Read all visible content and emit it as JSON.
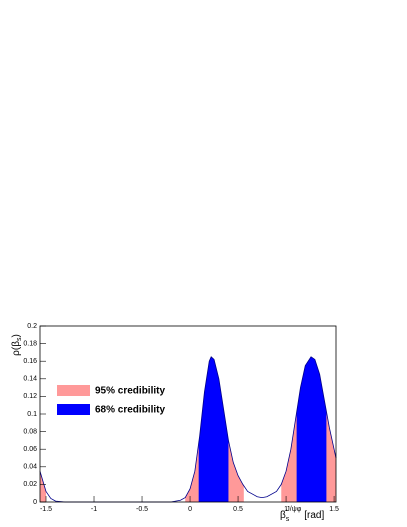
{
  "chart_data": {
    "type": "area",
    "y_label": {
      "main": "ρ(β",
      "sub": "s",
      "close": ")"
    },
    "x_label": {
      "main": "β",
      "sub": "s",
      "sup": "J/ψφ",
      "unit": "[rad]"
    },
    "x": [
      -1.5625,
      -1.5,
      -1.45,
      -1.4,
      -1.3,
      -1.2,
      -1.0,
      -0.8,
      -0.6,
      -0.4,
      -0.2,
      -0.1,
      -0.05,
      0,
      0.05,
      0.1,
      0.15,
      0.2,
      0.22,
      0.25,
      0.3,
      0.35,
      0.4,
      0.45,
      0.5,
      0.55,
      0.6,
      0.7,
      0.75,
      0.8,
      0.9,
      0.95,
      1.0,
      1.05,
      1.1,
      1.15,
      1.2,
      1.26,
      1.3,
      1.35,
      1.4,
      1.45,
      1.5,
      1.52
    ],
    "values": [
      0.035,
      0.012,
      0.004,
      0.001,
      0,
      0,
      0,
      0,
      0,
      0,
      0,
      0.002,
      0.005,
      0.015,
      0.035,
      0.075,
      0.125,
      0.16,
      0.165,
      0.162,
      0.14,
      0.105,
      0.07,
      0.045,
      0.03,
      0.02,
      0.012,
      0.006,
      0.005,
      0.006,
      0.012,
      0.02,
      0.035,
      0.06,
      0.095,
      0.13,
      0.155,
      0.165,
      0.162,
      0.145,
      0.115,
      0.085,
      0.06,
      0.05
    ],
    "line_color": "#00008b",
    "regions": [
      {
        "name": "95% credibility",
        "color": "#ff9999",
        "intervals": [
          [
            -1.5625,
            -1.5
          ],
          [
            -0.05,
            0.56
          ],
          [
            0.95,
            1.52
          ]
        ]
      },
      {
        "name": "68% credibility",
        "color": "#0000ff",
        "intervals": [
          [
            0.09,
            0.4
          ],
          [
            1.11,
            1.42
          ]
        ]
      }
    ],
    "xlim": [
      -1.5625,
      1.52
    ],
    "xticks": [
      -1.5,
      -1,
      -0.5,
      0,
      0.5,
      1,
      1.5
    ],
    "ylim": [
      0,
      0.2
    ],
    "yticks": [
      0,
      0.02,
      0.04,
      0.06,
      0.08,
      0.1,
      0.12,
      0.14,
      0.16,
      0.18,
      0.2
    ]
  }
}
